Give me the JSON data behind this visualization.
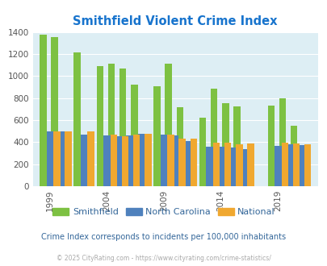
{
  "title": "Smithfield Violent Crime Index",
  "years": [
    1999,
    2000,
    2002,
    2004,
    2005,
    2006,
    2007,
    2009,
    2010,
    2011,
    2013,
    2014,
    2015,
    2016,
    2019,
    2020,
    2021
  ],
  "smithfield": [
    1375,
    1350,
    1215,
    1090,
    1110,
    1070,
    925,
    905,
    1110,
    715,
    620,
    885,
    755,
    725,
    730,
    800,
    545
  ],
  "nc": [
    495,
    495,
    470,
    460,
    450,
    460,
    475,
    465,
    460,
    410,
    355,
    355,
    350,
    340,
    365,
    380,
    375
  ],
  "national": [
    500,
    500,
    495,
    470,
    450,
    465,
    475,
    465,
    435,
    430,
    395,
    395,
    380,
    385,
    395,
    390,
    380
  ],
  "color_smithfield": "#7dc142",
  "color_nc": "#4f81bd",
  "color_national": "#f0a830",
  "bg_color": "#ddeef4",
  "title_color": "#1874cd",
  "subtitle_color": "#336699",
  "footer_color": "#aaaaaa",
  "ylim": [
    0,
    1400
  ],
  "yticks": [
    0,
    200,
    400,
    600,
    800,
    1000,
    1200,
    1400
  ],
  "xtick_labels": [
    "1999",
    "2004",
    "2009",
    "2014",
    "2019"
  ],
  "subtitle": "Crime Index corresponds to incidents per 100,000 inhabitants",
  "footer": "© 2025 CityRating.com - https://www.cityrating.com/crime-statistics/"
}
